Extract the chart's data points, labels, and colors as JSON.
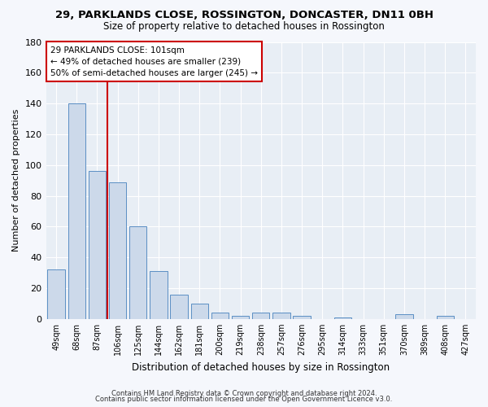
{
  "title": "29, PARKLANDS CLOSE, ROSSINGTON, DONCASTER, DN11 0BH",
  "subtitle": "Size of property relative to detached houses in Rossington",
  "xlabel": "Distribution of detached houses by size in Rossington",
  "ylabel": "Number of detached properties",
  "bar_color": "#ccd9ea",
  "bar_edgecolor": "#5b8fc4",
  "background_color": "#e8eef5",
  "grid_color": "#ffffff",
  "fig_facecolor": "#f5f7fc",
  "categories": [
    "49sqm",
    "68sqm",
    "87sqm",
    "106sqm",
    "125sqm",
    "144sqm",
    "162sqm",
    "181sqm",
    "200sqm",
    "219sqm",
    "238sqm",
    "257sqm",
    "276sqm",
    "295sqm",
    "314sqm",
    "333sqm",
    "351sqm",
    "370sqm",
    "389sqm",
    "408sqm",
    "427sqm"
  ],
  "values": [
    32,
    140,
    96,
    89,
    60,
    31,
    16,
    10,
    4,
    2,
    4,
    4,
    2,
    0,
    1,
    0,
    0,
    3,
    0,
    2,
    0
  ],
  "vline_x": 2.5,
  "vline_color": "#cc0000",
  "annotation_title": "29 PARKLANDS CLOSE: 101sqm",
  "annotation_line1": "← 49% of detached houses are smaller (239)",
  "annotation_line2": "50% of semi-detached houses are larger (245) →",
  "footer1": "Contains HM Land Registry data © Crown copyright and database right 2024.",
  "footer2": "Contains public sector information licensed under the Open Government Licence v3.0.",
  "ylim": [
    0,
    180
  ],
  "yticks": [
    0,
    20,
    40,
    60,
    80,
    100,
    120,
    140,
    160,
    180
  ]
}
